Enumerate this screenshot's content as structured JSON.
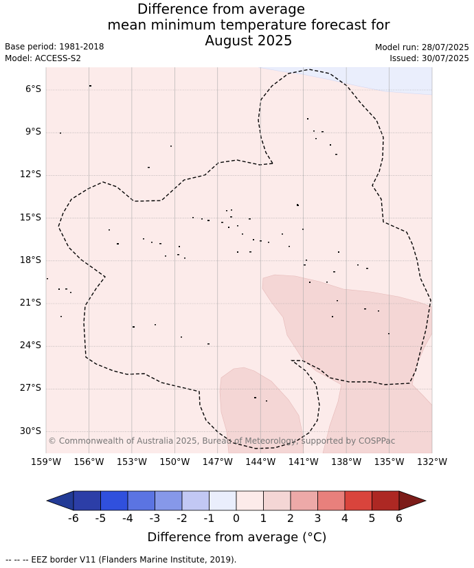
{
  "title": {
    "line1": "Difference from average",
    "line2": "mean minimum temperature forecast for",
    "line3": "August 2025"
  },
  "meta": {
    "base_period": "Base period: 1981-2018",
    "model": "Model: ACCESS-S2",
    "model_run": "Model run: 28/07/2025",
    "issued": "Issued: 30/07/2025"
  },
  "map": {
    "lat_ticks": [
      "6°S",
      "9°S",
      "12°S",
      "15°S",
      "18°S",
      "21°S",
      "24°S",
      "27°S",
      "30°S"
    ],
    "lon_ticks": [
      "159°W",
      "156°W",
      "153°W",
      "150°W",
      "147°W",
      "144°W",
      "141°W",
      "138°W",
      "135°W",
      "132°W"
    ],
    "copyright": "© Commonwealth of Australia 2025, Bureau of Meteorology, supported by COSPPac",
    "colors": {
      "base_anomaly": "#fcebea",
      "warm_patch": "#f4d6d5",
      "cool_patch": "#eaeefc",
      "eez_border": "#000000",
      "grid": "#aaaaaa"
    }
  },
  "colorbar": {
    "ticks": [
      "-6",
      "-5",
      "-4",
      "-3",
      "-2",
      "-1",
      "0",
      "1",
      "2",
      "3",
      "4",
      "5",
      "6"
    ],
    "colors": [
      "#233b96",
      "#2c3ea7",
      "#3050dd",
      "#5b74e2",
      "#8698e9",
      "#c2c8f4",
      "#eaeefc",
      "#fcebea",
      "#f4d6d5",
      "#eda9a8",
      "#e8807c",
      "#d9443c",
      "#ad2823",
      "#7c1c19"
    ],
    "label": "Difference from average (°C)"
  },
  "footer": "-- -- -- EEZ border V11 (Flanders Marine Institute, 2019)."
}
